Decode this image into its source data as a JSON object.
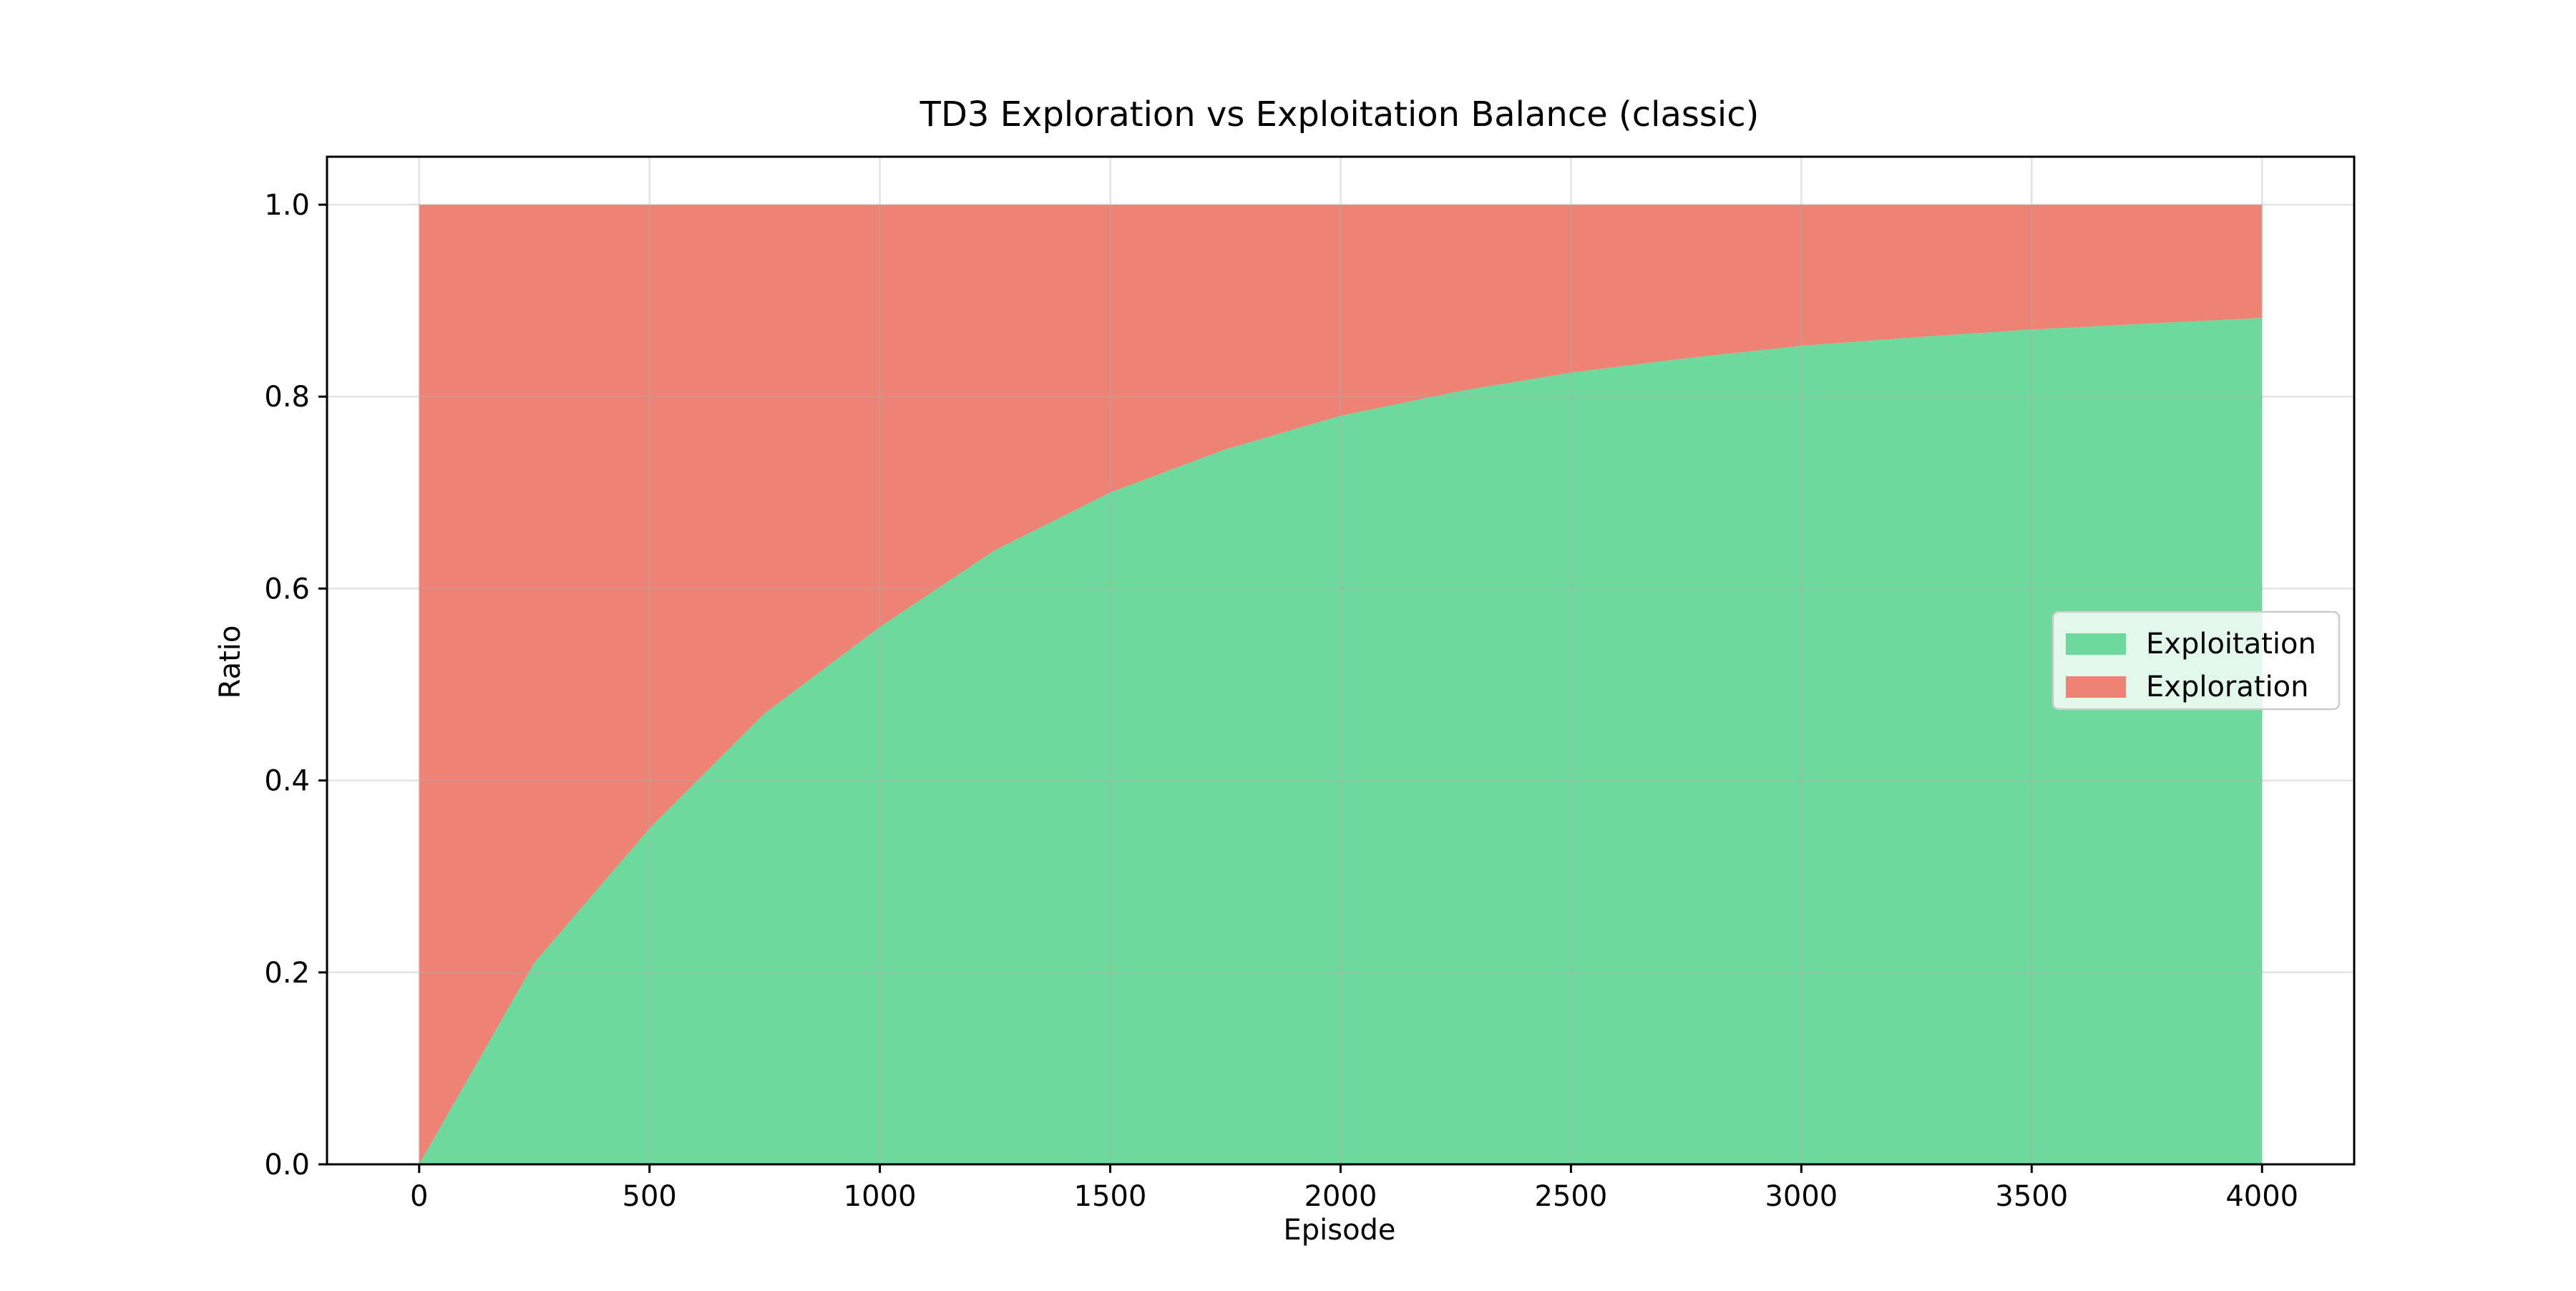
{
  "chart_data": {
    "type": "area",
    "stacked": true,
    "title": "TD3 Exploration vs Exploitation Balance (classic)",
    "xlabel": "Episode",
    "ylabel": "Ratio",
    "xlim": [
      -200,
      4200
    ],
    "ylim": [
      0,
      1.05
    ],
    "x_ticks": [
      0,
      500,
      1000,
      1500,
      2000,
      2500,
      3000,
      3500,
      4000
    ],
    "y_ticks": [
      0.0,
      0.2,
      0.4,
      0.6,
      0.8,
      1.0
    ],
    "x_tick_labels": [
      "0",
      "500",
      "1000",
      "1500",
      "2000",
      "2500",
      "3000",
      "3500",
      "4000"
    ],
    "y_tick_labels": [
      "0.0",
      "0.2",
      "0.4",
      "0.6",
      "0.8",
      "1.0"
    ],
    "grid": true,
    "legend_position": "center-right",
    "x": [
      0,
      250,
      500,
      750,
      1000,
      1250,
      1500,
      1750,
      2000,
      2250,
      2500,
      2750,
      3000,
      3250,
      3500,
      3750,
      4000
    ],
    "series": [
      {
        "name": "Exploitation",
        "color": "#6ed99c",
        "values": [
          0.0,
          0.21,
          0.35,
          0.47,
          0.56,
          0.64,
          0.7,
          0.745,
          0.78,
          0.805,
          0.825,
          0.84,
          0.853,
          0.862,
          0.87,
          0.876,
          0.882
        ]
      },
      {
        "name": "Exploration",
        "color": "#ee8275",
        "values": [
          1.0,
          0.79,
          0.65,
          0.53,
          0.44,
          0.36,
          0.3,
          0.255,
          0.22,
          0.195,
          0.175,
          0.16,
          0.147,
          0.138,
          0.13,
          0.124,
          0.118
        ]
      }
    ]
  }
}
